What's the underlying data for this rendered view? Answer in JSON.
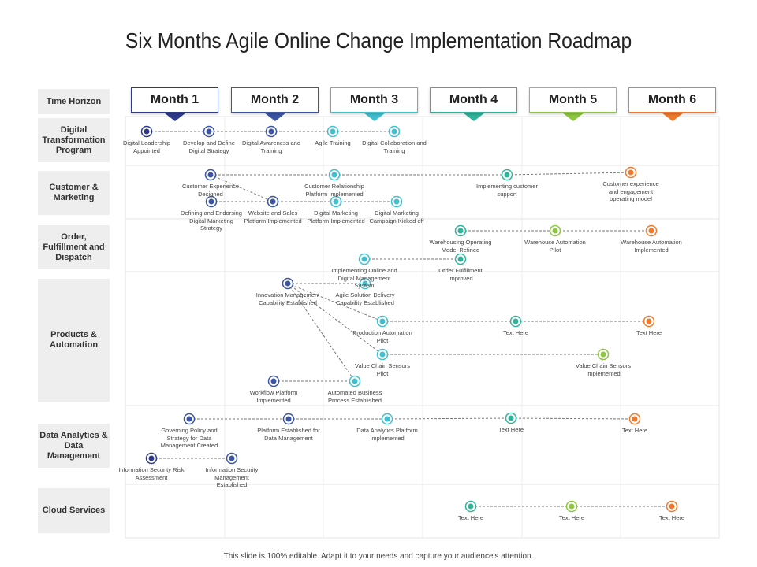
{
  "title": "Six Months Agile Online Change Implementation Roadmap",
  "footer": "This slide is 100% editable. Adapt it to your needs and capture your audience's attention.",
  "time_horizon": "Time Horizon",
  "months": [
    "Month 1",
    "Month 2",
    "Month 3",
    "Month 4",
    "Month 5",
    "Month 6"
  ],
  "rows": [
    {
      "label": "Digital Transformation Program",
      "nodes": [
        {
          "label": "Digital Leadership Appointed"
        },
        {
          "label": "Develop and Define Digital Strategy"
        },
        {
          "label": "Digital Awareness and Training"
        },
        {
          "label": "Agile Training"
        },
        {
          "label": "Digital Collaboration and Training"
        }
      ]
    },
    {
      "label": "Customer & Marketing",
      "nodes": [
        {
          "label": "Customer Experience Designed"
        },
        {
          "label": "Customer Relationship Platform Implemented"
        },
        {
          "label": "Implementing customer support"
        },
        {
          "label": "Customer experience and engagement operating model"
        },
        {
          "label": "Defining and Endorsing Digital Marketing Strategy"
        },
        {
          "label": "Website and Sales Platform Implemented"
        },
        {
          "label": "Digital Marketing Platform Implemented"
        },
        {
          "label": "Digital Marketing Campaign Kicked off"
        }
      ]
    },
    {
      "label": "Order, Fulfillment and Dispatch",
      "nodes": [
        {
          "label": "Warehousing Operating Model Refined"
        },
        {
          "label": "Warehouse Automation Pilot"
        },
        {
          "label": "Warehouse Automation Implemented"
        },
        {
          "label": "Implementing Online and Digital Management System"
        },
        {
          "label": "Order Fulfillment Improved"
        }
      ]
    },
    {
      "label": "Products & Automation",
      "nodes": [
        {
          "label": "Innovation Management Capability Established"
        },
        {
          "label": "Agile Solution Delivery Capability Established"
        },
        {
          "label": "Production Automation Pilot"
        },
        {
          "label": "Text Here"
        },
        {
          "label": "Text Here"
        },
        {
          "label": "Value Chain Sensors Pilot"
        },
        {
          "label": "Value Chain Sensors Implemented"
        },
        {
          "label": "Workflow Platform Implemented"
        },
        {
          "label": "Automated Business Process Established"
        }
      ]
    },
    {
      "label": "Data Analytics & Data Management",
      "nodes": [
        {
          "label": "Governing Policy and Strategy for Data Management Created"
        },
        {
          "label": "Platform Established for Data Management"
        },
        {
          "label": "Data Analytics Platform Implemented"
        },
        {
          "label": "Text Here"
        },
        {
          "label": "Text Here"
        },
        {
          "label": "Information Security Risk Assessment"
        },
        {
          "label": "Information Security Management Established"
        }
      ]
    },
    {
      "label": "Cloud Services",
      "nodes": [
        {
          "label": "Text Here"
        },
        {
          "label": "Text Here"
        },
        {
          "label": "Text Here"
        }
      ]
    }
  ]
}
